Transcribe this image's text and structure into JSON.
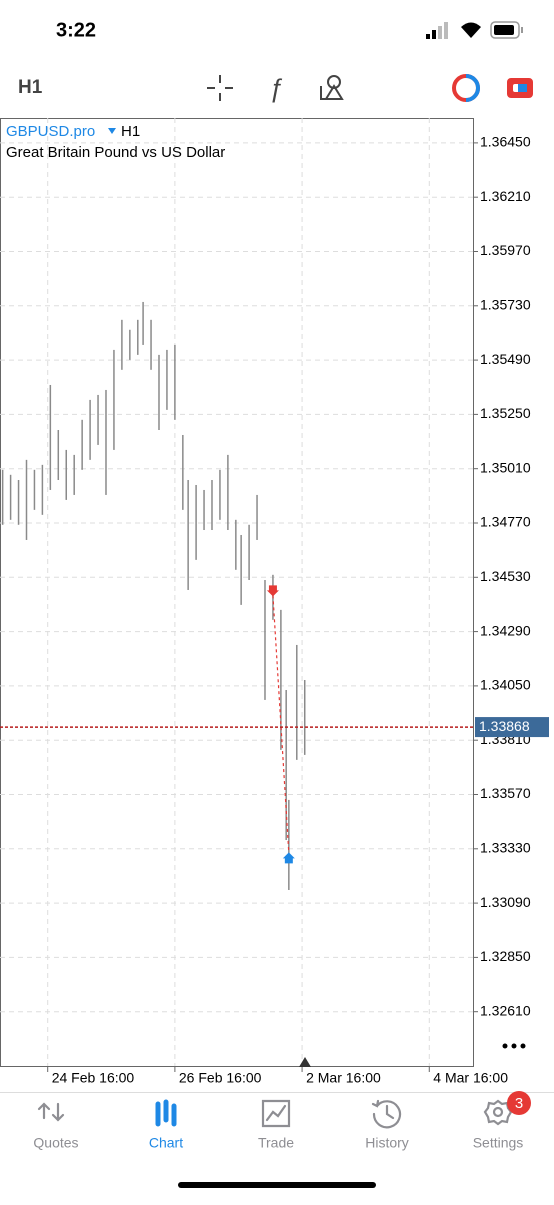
{
  "status_bar": {
    "time": "3:22"
  },
  "toolbar": {
    "timeframe": "H1"
  },
  "chart_data": {
    "type": "ohlc",
    "title": "GBPUSD.pro",
    "timeframe": "H1",
    "subtitle": "Great Britain Pound vs US Dollar",
    "x": [
      1,
      4,
      7,
      10,
      13,
      16,
      19,
      22,
      25,
      28,
      31,
      34,
      37,
      40,
      43,
      46,
      49,
      52,
      54,
      57,
      60,
      63,
      66,
      69,
      71,
      74,
      77,
      80,
      83,
      86,
      89,
      91,
      94,
      97,
      100,
      103,
      106,
      108,
      109,
      112,
      115
    ],
    "high": [
      1.35005,
      1.34983,
      1.3496,
      1.35049,
      1.35005,
      1.35027,
      1.3538,
      1.35181,
      1.35093,
      1.35071,
      1.35226,
      1.35314,
      1.35336,
      1.35358,
      1.35535,
      1.35668,
      1.35624,
      1.35668,
      1.35747,
      1.35668,
      1.35513,
      1.35535,
      1.35557,
      1.35159,
      1.3496,
      1.34938,
      1.34916,
      1.3496,
      1.35005,
      1.35071,
      1.34784,
      1.34717,
      1.34762,
      1.34894,
      1.34518,
      1.34541,
      1.34386,
      1.34032,
      1.33546,
      1.34231,
      1.34076
    ],
    "low": [
      1.34762,
      1.34784,
      1.34762,
      1.34695,
      1.34828,
      1.34806,
      1.34916,
      1.3496,
      1.34872,
      1.34894,
      1.35005,
      1.35049,
      1.35115,
      1.34894,
      1.35093,
      1.35447,
      1.35491,
      1.35513,
      1.35557,
      1.35447,
      1.35181,
      1.3527,
      1.35226,
      1.34828,
      1.34474,
      1.34607,
      1.34739,
      1.34739,
      1.34784,
      1.34739,
      1.34563,
      1.34408,
      1.34518,
      1.34695,
      1.33988,
      1.34342,
      1.33767,
      1.33369,
      1.33148,
      1.33723,
      1.33745
    ],
    "color": "#8a8a8a",
    "current_price": 1.33868,
    "current_price_color": "#b71c1c",
    "trades": [
      {
        "x": 103,
        "price": 1.3445,
        "direction": "down",
        "color": "#e53935"
      },
      {
        "x": 109,
        "price": 1.3331,
        "direction": "up",
        "color": "#1e88e5"
      }
    ],
    "xlim": [
      0,
      178.5
    ],
    "ylim": [
      1.3237,
      1.3656
    ],
    "xticks": [
      {
        "value": 18,
        "label": "24 Feb 16:00"
      },
      {
        "value": 66,
        "label": "26 Feb 16:00"
      },
      {
        "value": 114,
        "label": "2 Mar 16:00"
      },
      {
        "value": 162,
        "label": "4 Mar 16:00"
      }
    ],
    "yticks": [
      {
        "value": 1.3645,
        "label": "1.36450"
      },
      {
        "value": 1.3621,
        "label": "1.36210"
      },
      {
        "value": 1.3597,
        "label": "1.35970"
      },
      {
        "value": 1.3573,
        "label": "1.35730"
      },
      {
        "value": 1.3549,
        "label": "1.35490"
      },
      {
        "value": 1.3525,
        "label": "1.35250"
      },
      {
        "value": 1.3501,
        "label": "1.35010"
      },
      {
        "value": 1.3477,
        "label": "1.34770"
      },
      {
        "value": 1.3453,
        "label": "1.34530"
      },
      {
        "value": 1.3429,
        "label": "1.34290"
      },
      {
        "value": 1.3405,
        "label": "1.34050"
      },
      {
        "value": 1.3381,
        "label": "1.33810"
      },
      {
        "value": 1.3357,
        "label": "1.33570"
      },
      {
        "value": 1.3333,
        "label": "1.33330"
      },
      {
        "value": 1.3309,
        "label": "1.33090"
      },
      {
        "value": 1.3285,
        "label": "1.32850"
      },
      {
        "value": 1.3261,
        "label": "1.32610"
      }
    ],
    "grid": true
  },
  "tab_bar": {
    "tabs": [
      "Quotes",
      "Chart",
      "Trade",
      "History",
      "Settings"
    ],
    "active": 1,
    "settings_badge": 3
  }
}
